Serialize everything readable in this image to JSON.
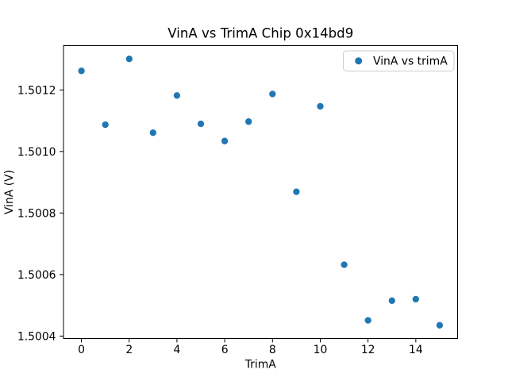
{
  "chart_data": {
    "type": "scatter",
    "title": "VinA vs TrimA Chip 0x14bd9",
    "xlabel": "TrimA",
    "ylabel": "VinA (V)",
    "xlim": [
      -0.75,
      15.75
    ],
    "ylim": [
      1.500392,
      1.501344
    ],
    "grid": false,
    "xticks": {
      "values": [
        0,
        2,
        4,
        6,
        8,
        10,
        12,
        14
      ],
      "labels": [
        "0",
        "2",
        "4",
        "6",
        "8",
        "10",
        "12",
        "14"
      ]
    },
    "yticks": {
      "values": [
        1.5004,
        1.5006,
        1.5008,
        1.501,
        1.5012
      ],
      "labels": [
        "1.5004",
        "1.5006",
        "1.5008",
        "1.5010",
        "1.5012"
      ]
    },
    "legend": {
      "position": "upper right",
      "entries": [
        {
          "label": "VinA vs trimA",
          "marker": "circle",
          "color": "#1f77b4"
        }
      ]
    },
    "series": [
      {
        "name": "VinA vs trimA",
        "marker": "circle",
        "color": "#1f77b4",
        "x": [
          0,
          1,
          2,
          3,
          4,
          5,
          6,
          7,
          8,
          9,
          10,
          11,
          12,
          13,
          14,
          15
        ],
        "y": [
          1.501262,
          1.501087,
          1.501301,
          1.501061,
          1.501182,
          1.50109,
          1.501034,
          1.501097,
          1.501187,
          1.500869,
          1.501147,
          1.500632,
          1.500451,
          1.500515,
          1.50052,
          1.500435
        ]
      }
    ],
    "colors": {
      "marker": "#1f77b4",
      "spine": "#000000",
      "tick": "#000000",
      "legend_edge": "#cccccc",
      "background": "#ffffff"
    }
  }
}
